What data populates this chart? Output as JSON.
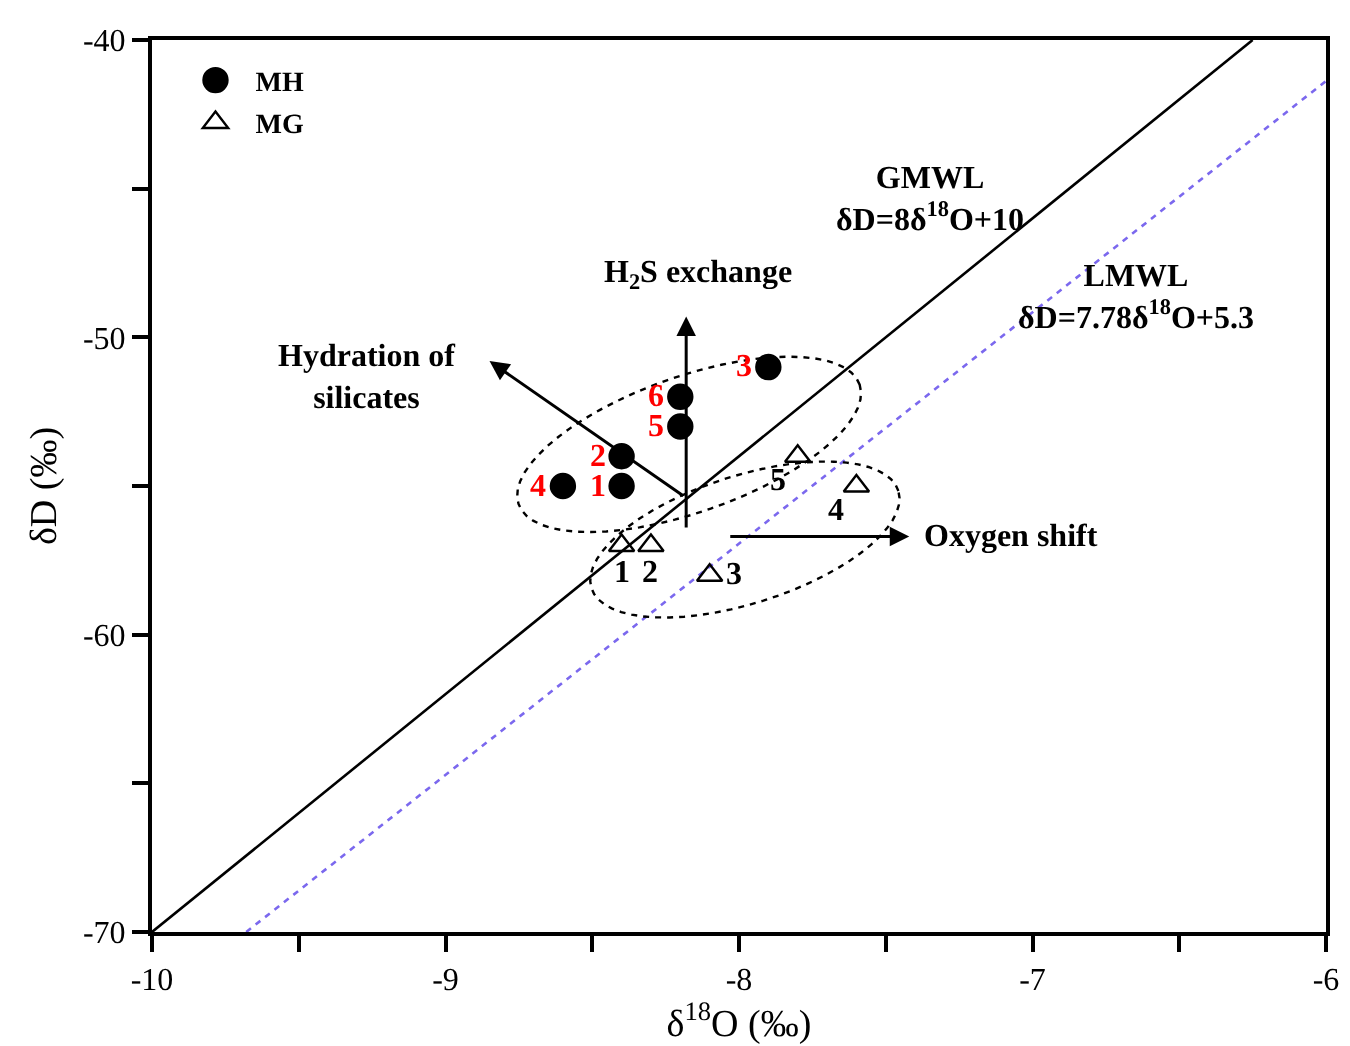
{
  "chart_data": {
    "type": "scatter",
    "xlabel": "δ$^{18}$O (‰)",
    "ylabel": "δD (‰)",
    "series": [
      {
        "name": "MH",
        "marker": "circle",
        "color": "#000000",
        "x": [
          -8.4,
          -8.4,
          -7.9,
          -8.6,
          -8.2,
          -8.2
        ],
        "values": [
          -55,
          -54,
          -51,
          -55,
          -53,
          -52
        ]
      },
      {
        "name": "MG",
        "marker": "triangle",
        "color": "#000000",
        "x": [
          -8.4,
          -8.3,
          -8.1,
          -7.6,
          -7.8
        ],
        "values": [
          -57,
          -57,
          -58,
          -55,
          -54
        ]
      },
      {
        "type": "line",
        "color": "#000000",
        "line_style": "solid",
        "x": [
          -10,
          -6.25
        ],
        "values": [
          -70,
          -40
        ]
      },
      {
        "type": "line",
        "color": "#7b68ee",
        "line_style": "dotted",
        "x": [
          -9.679,
          -6
        ],
        "values": [
          -70,
          -41.38
        ]
      }
    ],
    "annotations": [
      "GMWL\nδD=8δ$^{18}$O+10",
      "LMWL\nδD=7.78δ$^{18}$O+5.3",
      "H$_{2}$S exchange",
      "Hydration of\nsilicates",
      "Oxygen shift",
      {
        "text": "1",
        "x": -8.4,
        "y": -55
      },
      {
        "text": "2",
        "x": -8.4,
        "y": -54
      },
      {
        "text": "3",
        "x": -7.9,
        "y": -51
      },
      {
        "text": "4",
        "x": -8.6,
        "y": -55
      },
      {
        "text": "5",
        "x": -8.2,
        "y": -53
      },
      {
        "text": "6",
        "x": -8.2,
        "y": -52
      },
      {
        "text": "1",
        "x": -8.4,
        "y": -57
      },
      {
        "text": "2",
        "x": -8.3,
        "y": -57
      },
      {
        "text": "3",
        "x": -8.1,
        "y": -58
      },
      {
        "text": "4",
        "x": -7.6,
        "y": -55
      },
      {
        "text": "5",
        "x": -7.8,
        "y": -54
      }
    ],
    "xlim": [
      -10,
      -6
    ],
    "xticks": [
      -10,
      {
        "value": -9.5,
        "label": null
      },
      -9,
      {
        "value": -8.5,
        "label": null
      },
      -8,
      {
        "value": -7.5,
        "label": null
      },
      -7,
      {
        "value": -6.5,
        "label": null
      },
      -6
    ],
    "ylim": [
      -70,
      -40
    ],
    "yticks": [
      -70,
      {
        "value": -65,
        "label": null
      },
      -60,
      {
        "value": -55,
        "label": null
      },
      -50,
      {
        "value": -45,
        "label": null
      },
      -40
    ],
    "grid": false,
    "legend": "top left"
  }
}
